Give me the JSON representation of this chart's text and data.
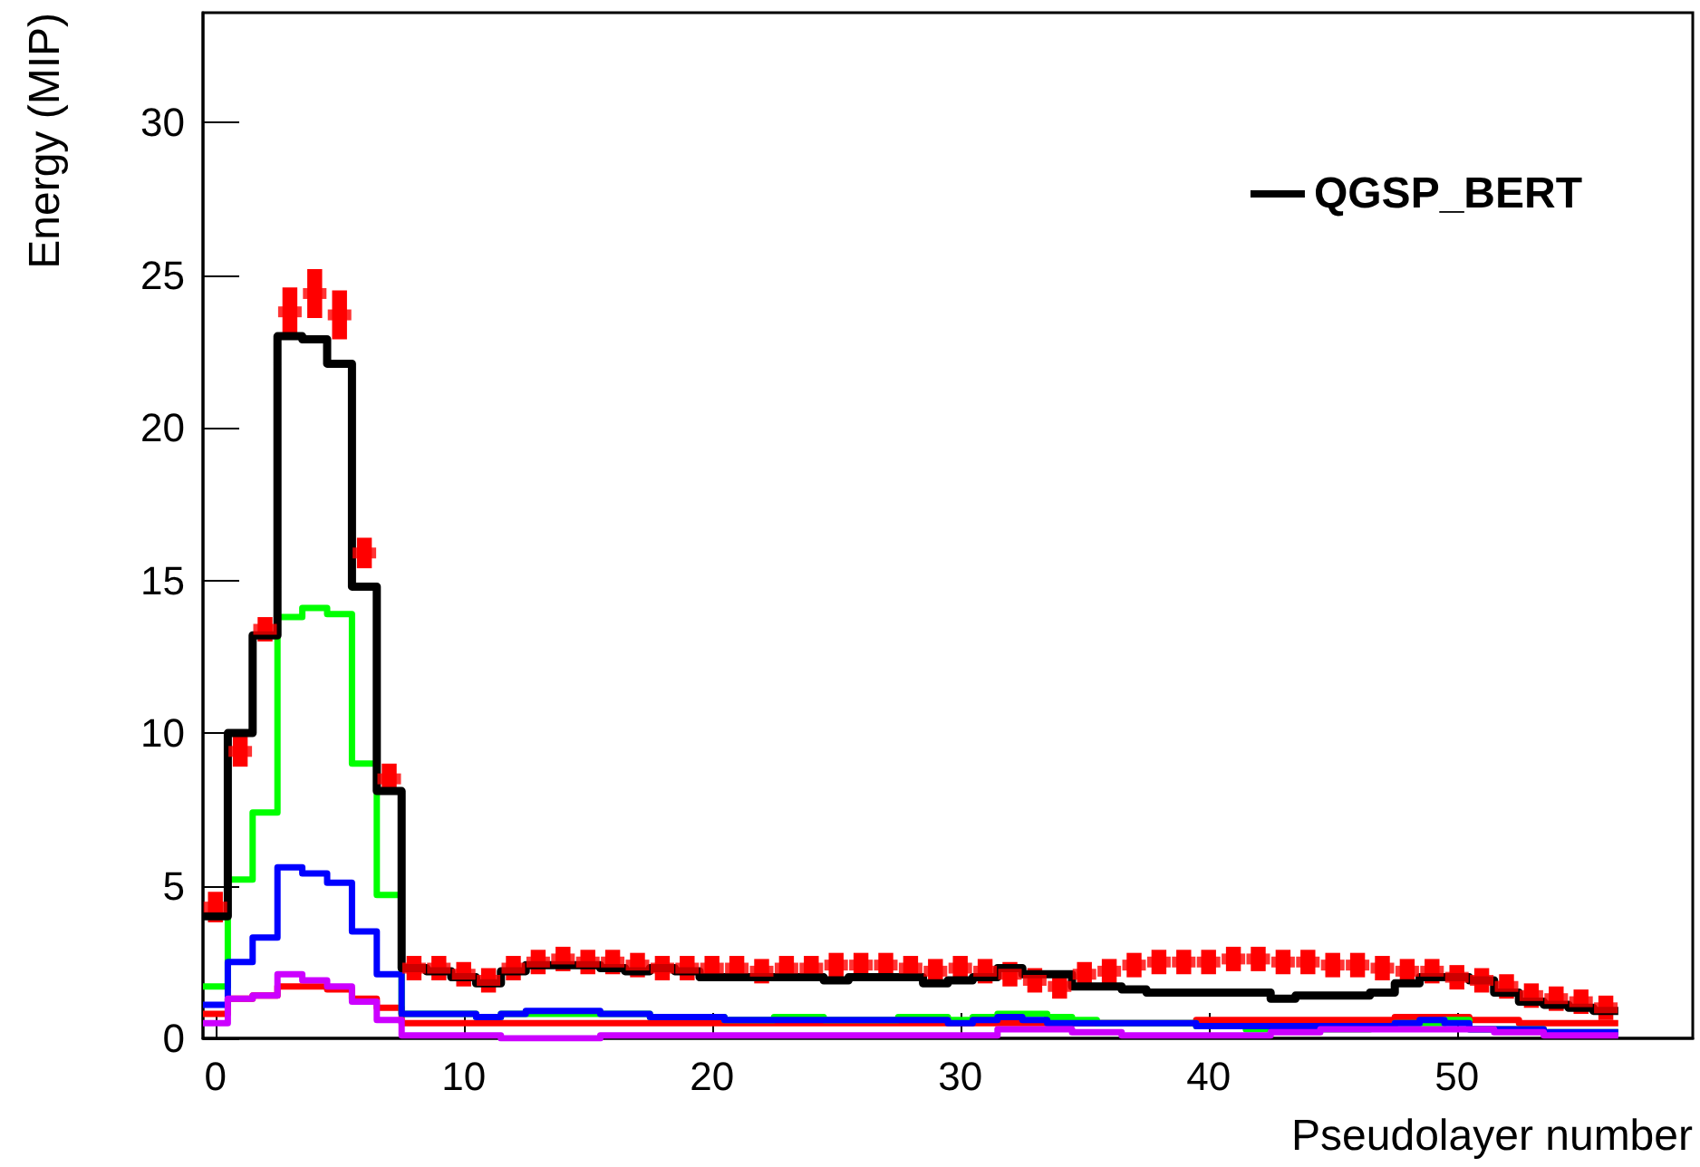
{
  "chart_data": {
    "type": "histogram",
    "xlabel": "Pseudolayer number",
    "ylabel": "Energy (MIP)",
    "bins": [
      -0.5,
      0.5,
      1.5,
      2.5,
      3.5,
      4.5,
      5.5,
      6.5,
      7.5,
      8.5,
      9.5,
      10.5,
      11.5,
      12.5,
      13.5,
      14.5,
      15.5,
      16.5,
      17.5,
      18.5,
      19.5,
      20.5,
      21.5,
      22.5,
      23.5,
      24.5,
      25.5,
      26.5,
      27.5,
      28.5,
      29.5,
      30.5,
      31.5,
      32.5,
      33.5,
      34.5,
      35.5,
      36.5,
      37.5,
      38.5,
      39.5,
      40.5,
      41.5,
      42.5,
      43.5,
      44.5,
      45.5,
      46.5,
      47.5,
      48.5,
      49.5,
      50.5,
      51.5,
      52.5,
      53.5,
      54.5,
      55.5,
      56.5
    ],
    "xlim": [
      -0.5,
      59.5
    ],
    "xticks": [
      0,
      10,
      20,
      30,
      40,
      50
    ],
    "ylim": [
      0,
      33.6
    ],
    "yticks": [
      0,
      5,
      10,
      15,
      20,
      25,
      30
    ],
    "grid": false,
    "legend": "top right",
    "series": [
      {
        "type": "scatter",
        "marker": "square",
        "color": "#ff0000",
        "x": [
          0,
          1,
          2,
          3,
          4,
          5,
          6,
          7,
          8,
          9,
          10,
          11,
          12,
          13,
          14,
          15,
          16,
          17,
          18,
          19,
          20,
          21,
          22,
          23,
          24,
          25,
          26,
          27,
          28,
          29,
          30,
          31,
          32,
          33,
          34,
          35,
          36,
          37,
          38,
          39,
          40,
          41,
          42,
          43,
          44,
          45,
          46,
          47,
          48,
          49,
          50,
          51,
          52,
          53,
          54,
          55,
          56
        ],
        "values": [
          4.3,
          9.4,
          13.4,
          23.8,
          24.4,
          23.7,
          15.9,
          8.5,
          2.3,
          2.3,
          2.1,
          1.9,
          2.3,
          2.5,
          2.6,
          2.5,
          2.5,
          2.4,
          2.3,
          2.3,
          2.3,
          2.3,
          2.2,
          2.3,
          2.3,
          2.4,
          2.4,
          2.4,
          2.3,
          2.2,
          2.3,
          2.2,
          2.1,
          1.9,
          1.7,
          2.1,
          2.2,
          2.4,
          2.5,
          2.5,
          2.5,
          2.6,
          2.6,
          2.5,
          2.5,
          2.4,
          2.4,
          2.3,
          2.2,
          2.2,
          2.0,
          1.9,
          1.7,
          1.4,
          1.3,
          1.2,
          1.0
        ],
        "errors": [
          0.5,
          0.5,
          0.4,
          0.8,
          0.8,
          0.8,
          0.5,
          0.5,
          0.4,
          0.4,
          0.4,
          0.4,
          0.4,
          0.4,
          0.4,
          0.4,
          0.4,
          0.4,
          0.4,
          0.4,
          0.4,
          0.4,
          0.4,
          0.4,
          0.4,
          0.4,
          0.4,
          0.4,
          0.4,
          0.4,
          0.4,
          0.4,
          0.4,
          0.4,
          0.4,
          0.4,
          0.4,
          0.4,
          0.4,
          0.4,
          0.4,
          0.4,
          0.4,
          0.4,
          0.4,
          0.4,
          0.4,
          0.4,
          0.4,
          0.4,
          0.4,
          0.4,
          0.4,
          0.4,
          0.4,
          0.4,
          0.4
        ]
      },
      {
        "color": "#ff0000",
        "values": [
          0.8,
          1.3,
          1.4,
          1.7,
          1.7,
          1.6,
          1.3,
          1.0,
          0.5,
          0.5,
          0.5,
          0.5,
          0.5,
          0.5,
          0.5,
          0.5,
          0.5,
          0.5,
          0.5,
          0.5,
          0.5,
          0.5,
          0.5,
          0.5,
          0.5,
          0.5,
          0.5,
          0.5,
          0.5,
          0.5,
          0.5,
          0.5,
          0.5,
          0.5,
          0.5,
          0.5,
          0.5,
          0.5,
          0.5,
          0.5,
          0.6,
          0.6,
          0.6,
          0.6,
          0.6,
          0.6,
          0.6,
          0.6,
          0.7,
          0.7,
          0.7,
          0.6,
          0.6,
          0.5,
          0.5,
          0.5,
          0.5
        ]
      },
      {
        "color": "#00ff00",
        "values": [
          1.7,
          5.2,
          7.4,
          13.8,
          14.1,
          13.9,
          9.0,
          4.7,
          0.8,
          0.8,
          0.8,
          0.7,
          0.8,
          0.8,
          0.8,
          0.8,
          0.8,
          0.8,
          0.7,
          0.7,
          0.7,
          0.6,
          0.6,
          0.7,
          0.7,
          0.6,
          0.6,
          0.6,
          0.7,
          0.7,
          0.6,
          0.7,
          0.8,
          0.8,
          0.7,
          0.6,
          0.5,
          0.5,
          0.5,
          0.5,
          0.4,
          0.4,
          0.3,
          0.3,
          0.3,
          0.3,
          0.3,
          0.4,
          0.5,
          0.5,
          0.6,
          0.3,
          0.3,
          0.3,
          0.2,
          0.2,
          0.2
        ]
      },
      {
        "color": "#0000ff",
        "values": [
          1.1,
          2.5,
          3.3,
          5.6,
          5.4,
          5.1,
          3.5,
          2.1,
          0.8,
          0.8,
          0.8,
          0.7,
          0.8,
          0.9,
          0.9,
          0.9,
          0.8,
          0.8,
          0.7,
          0.7,
          0.7,
          0.6,
          0.6,
          0.6,
          0.6,
          0.6,
          0.6,
          0.6,
          0.6,
          0.6,
          0.5,
          0.6,
          0.7,
          0.6,
          0.5,
          0.5,
          0.5,
          0.5,
          0.5,
          0.5,
          0.4,
          0.4,
          0.4,
          0.4,
          0.4,
          0.4,
          0.4,
          0.4,
          0.5,
          0.6,
          0.5,
          0.3,
          0.3,
          0.3,
          0.2,
          0.2,
          0.2
        ]
      },
      {
        "color": "#cc00ff",
        "values": [
          0.5,
          1.3,
          1.4,
          2.1,
          1.9,
          1.7,
          1.2,
          0.6,
          0.1,
          0.1,
          0.1,
          0.1,
          0.0,
          0.0,
          0.0,
          0.0,
          0.1,
          0.1,
          0.1,
          0.1,
          0.1,
          0.1,
          0.1,
          0.1,
          0.1,
          0.1,
          0.1,
          0.1,
          0.1,
          0.1,
          0.1,
          0.1,
          0.3,
          0.3,
          0.3,
          0.2,
          0.2,
          0.1,
          0.1,
          0.1,
          0.1,
          0.1,
          0.1,
          0.2,
          0.2,
          0.3,
          0.3,
          0.3,
          0.3,
          0.3,
          0.3,
          0.3,
          0.2,
          0.2,
          0.1,
          0.1,
          0.1
        ]
      },
      {
        "name": "QGSP_BERT",
        "color": "#000000",
        "values": [
          4.0,
          10.0,
          13.2,
          23.0,
          22.9,
          22.1,
          14.8,
          8.1,
          2.3,
          2.2,
          2.0,
          1.8,
          2.2,
          2.4,
          2.4,
          2.4,
          2.3,
          2.2,
          2.3,
          2.2,
          2.0,
          2.0,
          2.0,
          2.0,
          2.0,
          1.9,
          2.0,
          2.0,
          2.0,
          1.8,
          1.9,
          2.0,
          2.3,
          2.1,
          2.1,
          1.7,
          1.7,
          1.6,
          1.5,
          1.5,
          1.5,
          1.5,
          1.5,
          1.3,
          1.4,
          1.4,
          1.4,
          1.5,
          1.8,
          2.0,
          2.0,
          1.9,
          1.5,
          1.2,
          1.1,
          1.0,
          0.9
        ]
      }
    ]
  }
}
